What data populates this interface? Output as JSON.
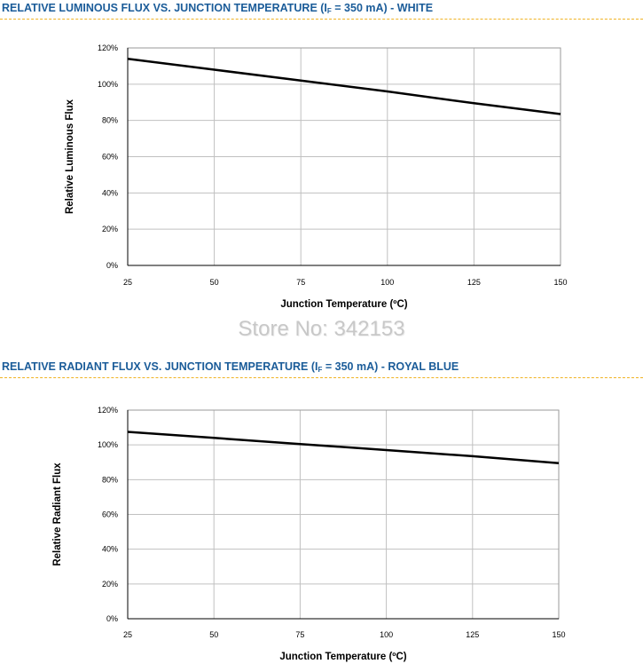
{
  "sections": [
    {
      "title_pre": "RELATIVE LUMINOUS FLUX VS. JUNCTION TEMPERATURE (I",
      "title_sub": "F",
      "title_post": " = 350 mA) - WHITE"
    },
    {
      "title_pre": "RELATIVE RADIANT FLUX VS. JUNCTION TEMPERATURE (I",
      "title_sub": "F",
      "title_post": " = 350 mA) - ROYAL BLUE"
    }
  ],
  "watermark": "Store No: 342153",
  "colors": {
    "title": "#1b5c99",
    "rule": "#f0b323",
    "grid": "#c0c0c0",
    "line": "#000000"
  },
  "chart_data": [
    {
      "type": "line",
      "title": "",
      "xlabel": "Junction Temperature (ºC)",
      "ylabel": "Relative Luminous Flux",
      "xlim": [
        25,
        150
      ],
      "ylim": [
        0,
        120
      ],
      "x_ticks": [
        25,
        50,
        75,
        100,
        125,
        150
      ],
      "y_ticks": [
        "0%",
        "20%",
        "40%",
        "60%",
        "80%",
        "100%",
        "120%"
      ],
      "grid": true,
      "series": [
        {
          "x": [
            25,
            50,
            75,
            100,
            125,
            150
          ],
          "y": [
            114,
            108,
            102,
            96,
            89.5,
            83.5
          ]
        }
      ]
    },
    {
      "type": "line",
      "title": "",
      "xlabel": "Junction Temperature (ºC)",
      "ylabel": "Relative Radiant Flux",
      "xlim": [
        25,
        150
      ],
      "ylim": [
        0,
        120
      ],
      "x_ticks": [
        25,
        50,
        75,
        100,
        125,
        150
      ],
      "y_ticks": [
        "0%",
        "20%",
        "40%",
        "60%",
        "80%",
        "100%",
        "120%"
      ],
      "grid": true,
      "series": [
        {
          "x": [
            25,
            50,
            75,
            100,
            125,
            150
          ],
          "y": [
            107.5,
            104,
            100.5,
            97,
            93.5,
            89.5
          ]
        }
      ]
    }
  ]
}
